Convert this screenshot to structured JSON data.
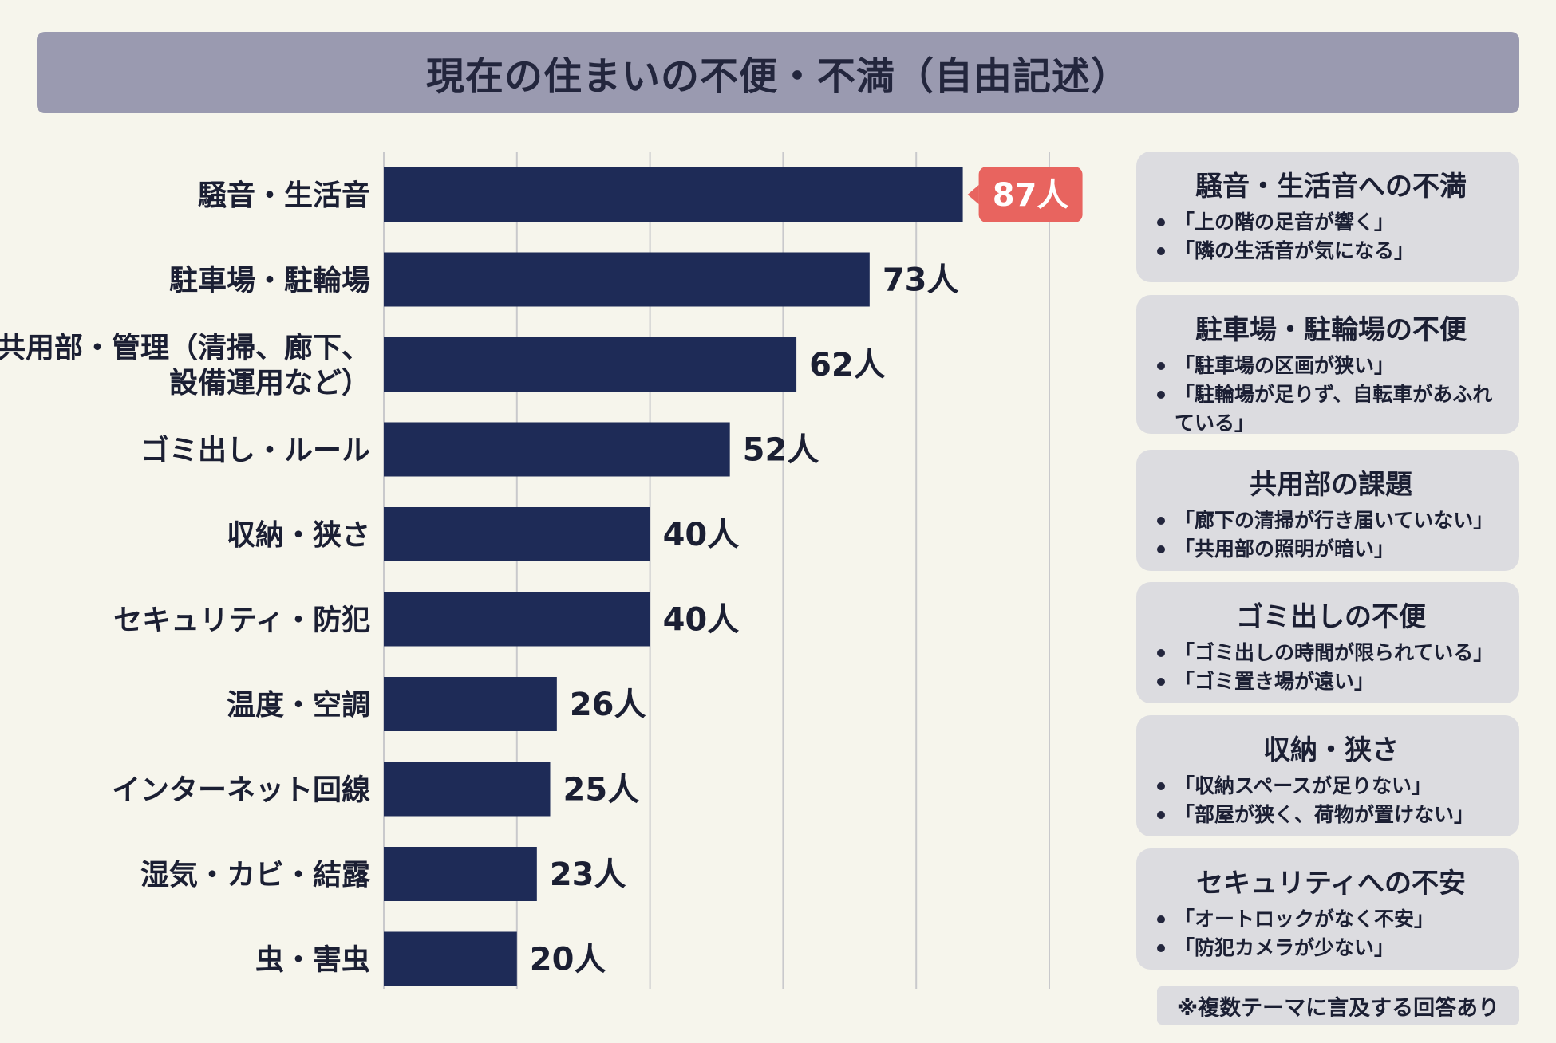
{
  "title": "現在の住まいの不便・不満（自由記述）",
  "chart_data": {
    "type": "bar",
    "orientation": "horizontal",
    "title": "現在の住まいの不便・不満（自由記述）",
    "categories": [
      "騒音・生活音",
      "駐車場・駐輪場",
      "共用部・管理（清掃、廊下、設備運用など）",
      "ゴミ出し・ルール",
      "収納・狭さ",
      "セキュリティ・防犯",
      "温度・空調",
      "インターネット回線",
      "湿気・カビ・結露",
      "虫・害虫"
    ],
    "category_lines": [
      [
        "騒音・生活音"
      ],
      [
        "駐車場・駐輪場"
      ],
      [
        "共用部・管理（清掃、廊下、",
        "設備運用など）"
      ],
      [
        "ゴミ出し・ルール"
      ],
      [
        "収納・狭さ"
      ],
      [
        "セキュリティ・防犯"
      ],
      [
        "温度・空調"
      ],
      [
        "インターネット回線"
      ],
      [
        "湿気・カビ・結露"
      ],
      [
        "虫・害虫"
      ]
    ],
    "values": [
      87,
      73,
      62,
      52,
      40,
      40,
      26,
      25,
      23,
      20
    ],
    "value_labels": [
      "87人",
      "73人",
      "62人",
      "52人",
      "40人",
      "40人",
      "26人",
      "25人",
      "23人",
      "20人"
    ],
    "highlight_index": 0,
    "unit": "人",
    "xlim": [
      0,
      100
    ],
    "gridlines": [
      0,
      20,
      40,
      60,
      80,
      100
    ],
    "colors": {
      "bar": "#1e2b57",
      "highlight": "#e8645f",
      "grid": "#c9c9cc"
    }
  },
  "panels": [
    {
      "title": "騒音・生活音への不満",
      "quotes": [
        "「上の階の足音が響く」",
        "「隣の生活音が気になる」"
      ]
    },
    {
      "title": "駐車場・駐輪場の不便",
      "quotes": [
        "「駐車場の区画が狭い」",
        "「駐輪場が足りず、自転車があふれている」"
      ]
    },
    {
      "title": "共用部の課題",
      "quotes": [
        "「廊下の清掃が行き届いていない」",
        "「共用部の照明が暗い」"
      ]
    },
    {
      "title": "ゴミ出しの不便",
      "quotes": [
        "「ゴミ出しの時間が限られている」",
        "「ゴミ置き場が遠い」"
      ]
    },
    {
      "title": "収納・狭さ",
      "quotes": [
        "「収納スペースが足りない」",
        "「部屋が狭く、荷物が置けない」"
      ]
    },
    {
      "title": "セキュリティへの不安",
      "quotes": [
        "「オートロックがなく不安」",
        "「防犯カメラが少ない」"
      ]
    }
  ],
  "footnote": "※複数テーマに言及する回答あり"
}
